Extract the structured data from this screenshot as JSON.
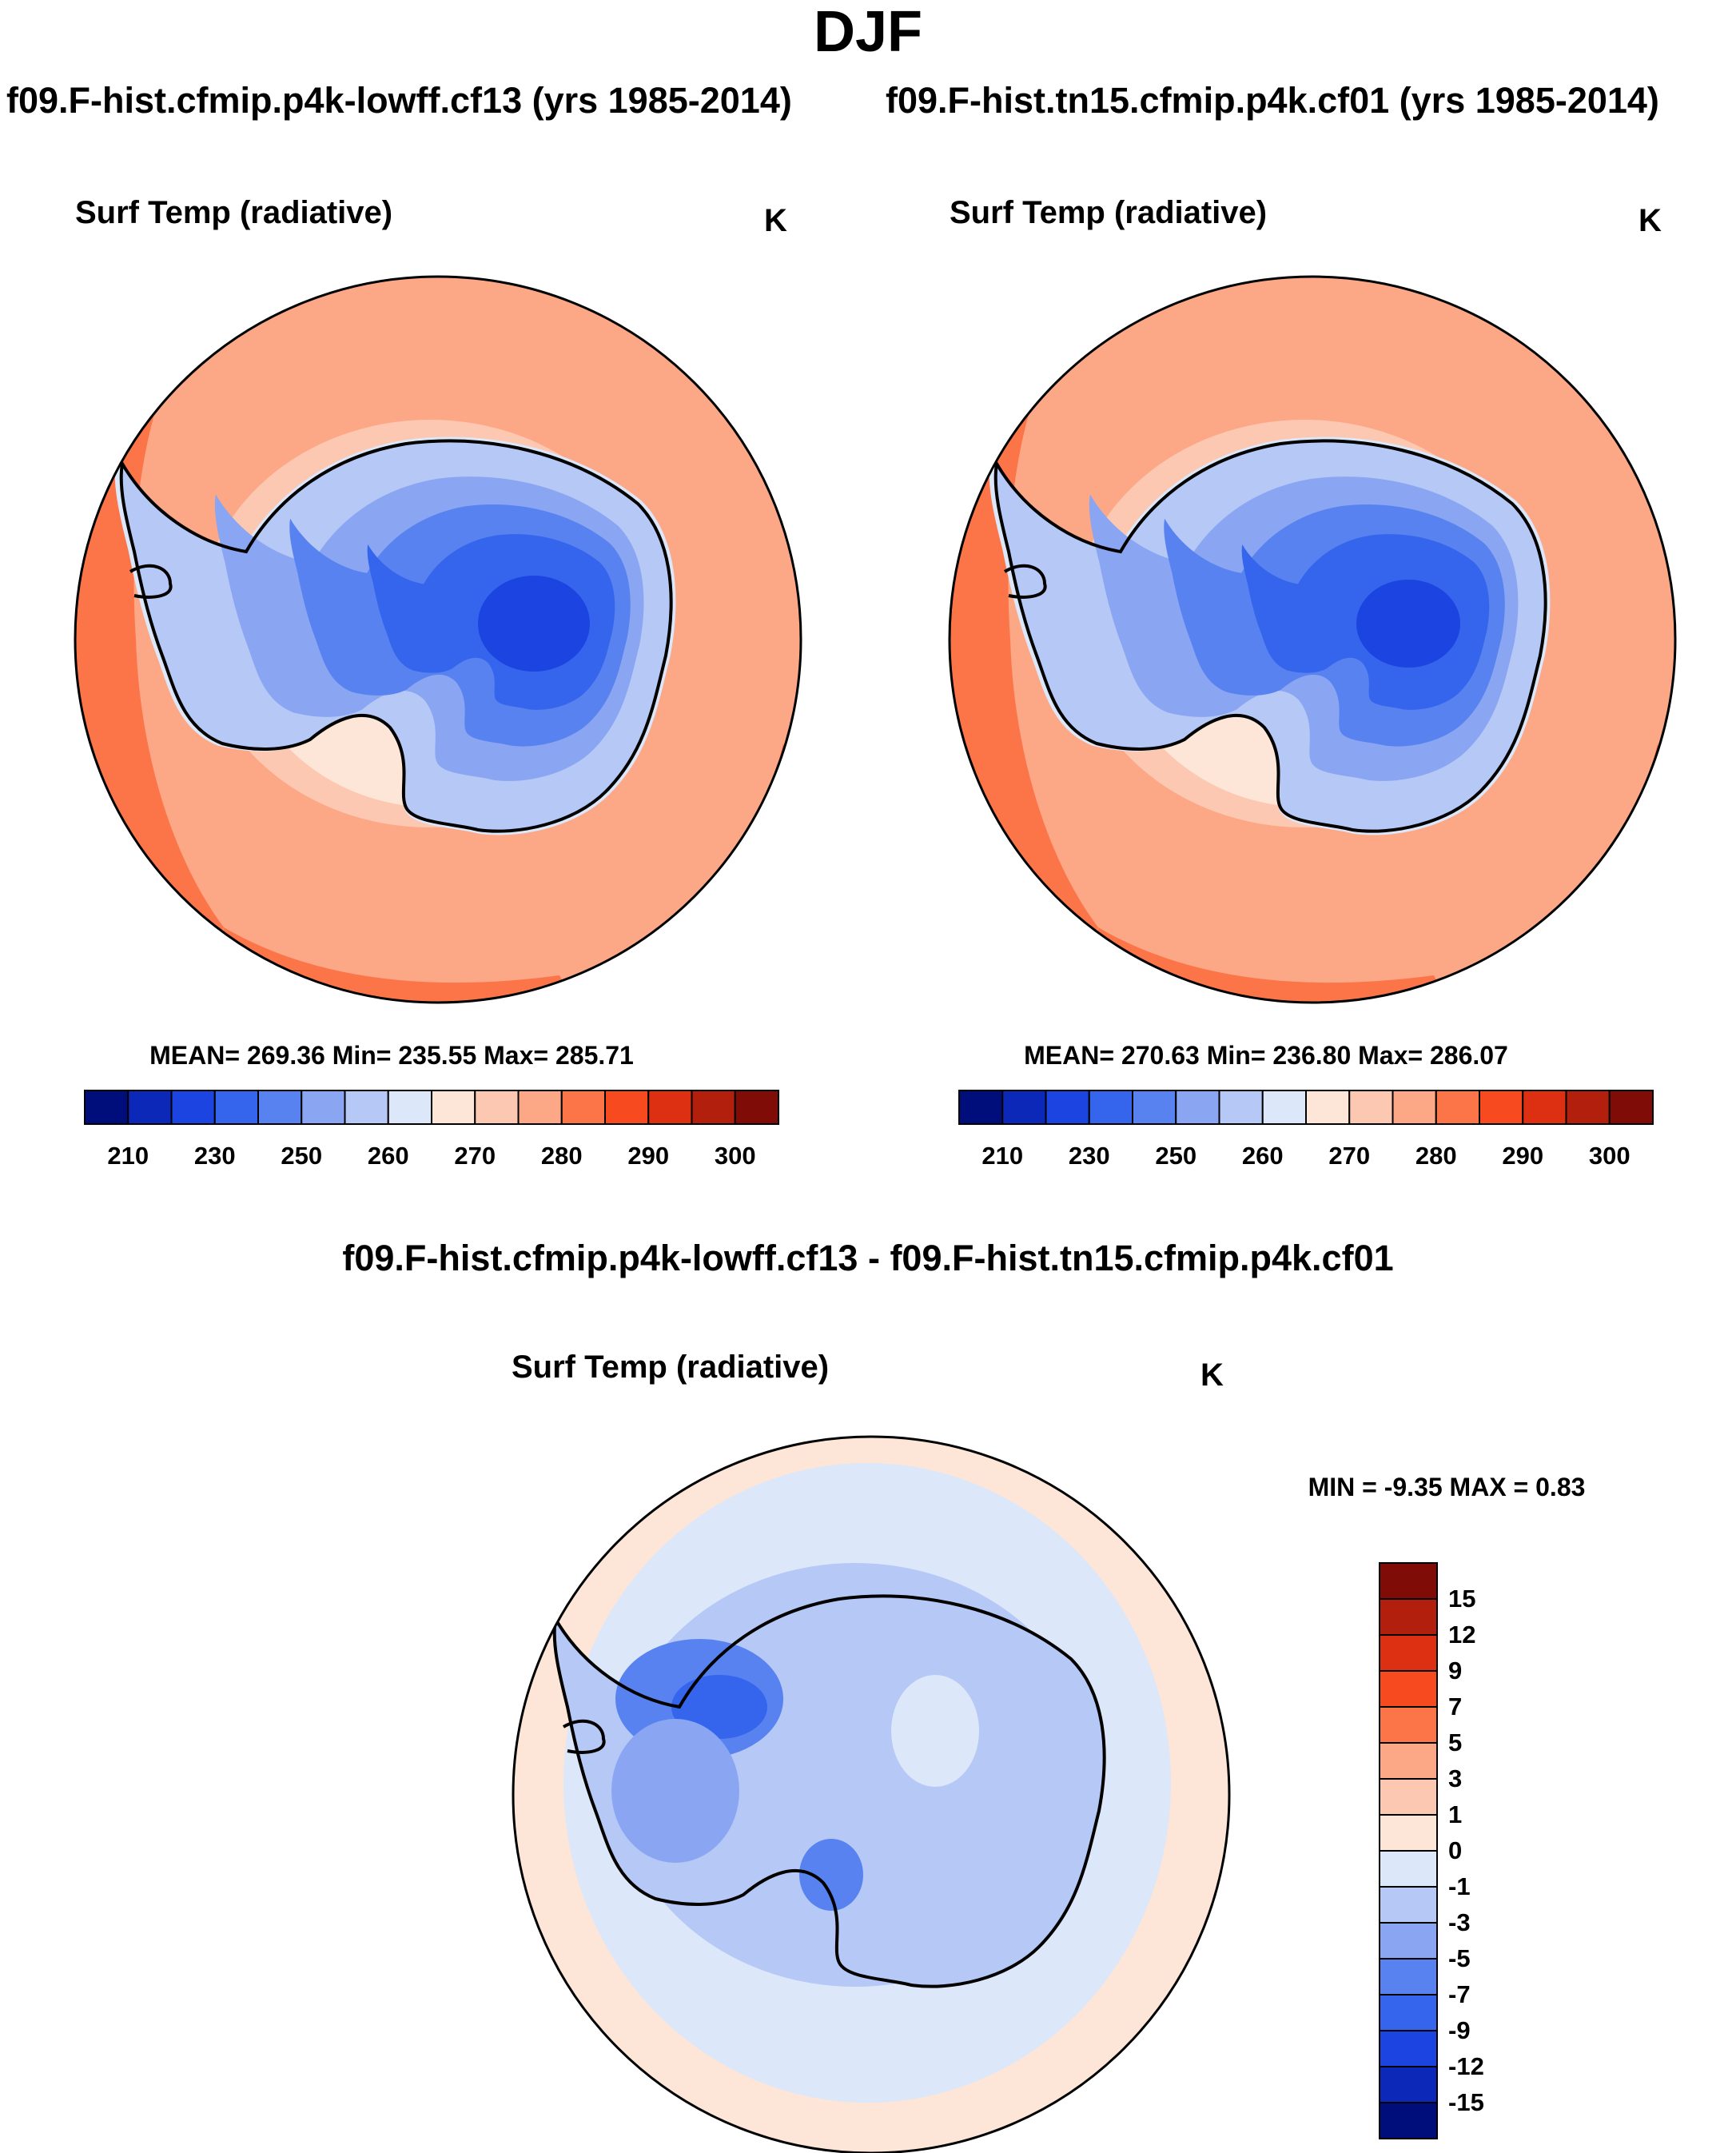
{
  "figure": {
    "season": "DJF",
    "panel_left": {
      "case_title": "f09.F-hist.cfmip.p4k-lowff.cf13 (yrs 1985-2014)",
      "variable": "Surf Temp (radiative)",
      "units": "K",
      "stats": "MEAN= 269.36  Min= 235.55  Max= 285.71"
    },
    "panel_right": {
      "case_title": "f09.F-hist.tn15.cfmip.p4k.cf01 (yrs 1985-2014)",
      "variable": "Surf Temp (radiative)",
      "units": "K",
      "stats": "MEAN= 270.63  Min= 236.80  Max= 286.07"
    },
    "panel_diff": {
      "title": "f09.F-hist.cfmip.p4k-lowff.cf13 - f09.F-hist.tn15.cfmip.p4k.cf01",
      "variable": "Surf Temp (radiative)",
      "units": "K",
      "stats": "MIN =  -9.35 MAX =   0.83"
    }
  },
  "colors": {
    "abs_scale": [
      "#000e7c",
      "#0b28b8",
      "#1c44e0",
      "#3465ec",
      "#5782ef",
      "#8aa6f2",
      "#b5c8f6",
      "#dce7fa",
      "#fde6d7",
      "#fcc8b2",
      "#fca887",
      "#fb7549",
      "#f84a1f",
      "#dd2f12",
      "#b31f0d",
      "#800c08"
    ],
    "diff_scale": [
      "#000e7c",
      "#0b28b8",
      "#1c44e0",
      "#3465ec",
      "#5782ef",
      "#8aa6f2",
      "#b5c8f6",
      "#dce7fa",
      "#fde6d7",
      "#fcc8b2",
      "#fca887",
      "#fb7549",
      "#f84a1f",
      "#dd2f12",
      "#b31f0d",
      "#800c08"
    ],
    "coastline": "#000000"
  },
  "colorbar_abs": {
    "labels": [
      "210",
      "230",
      "250",
      "260",
      "270",
      "280",
      "290",
      "300"
    ]
  },
  "colorbar_diff": {
    "labels": [
      "15",
      "12",
      "9",
      "7",
      "5",
      "3",
      "1",
      "0",
      "-1",
      "-3",
      "-5",
      "-7",
      "-9",
      "-12",
      "-15"
    ]
  }
}
